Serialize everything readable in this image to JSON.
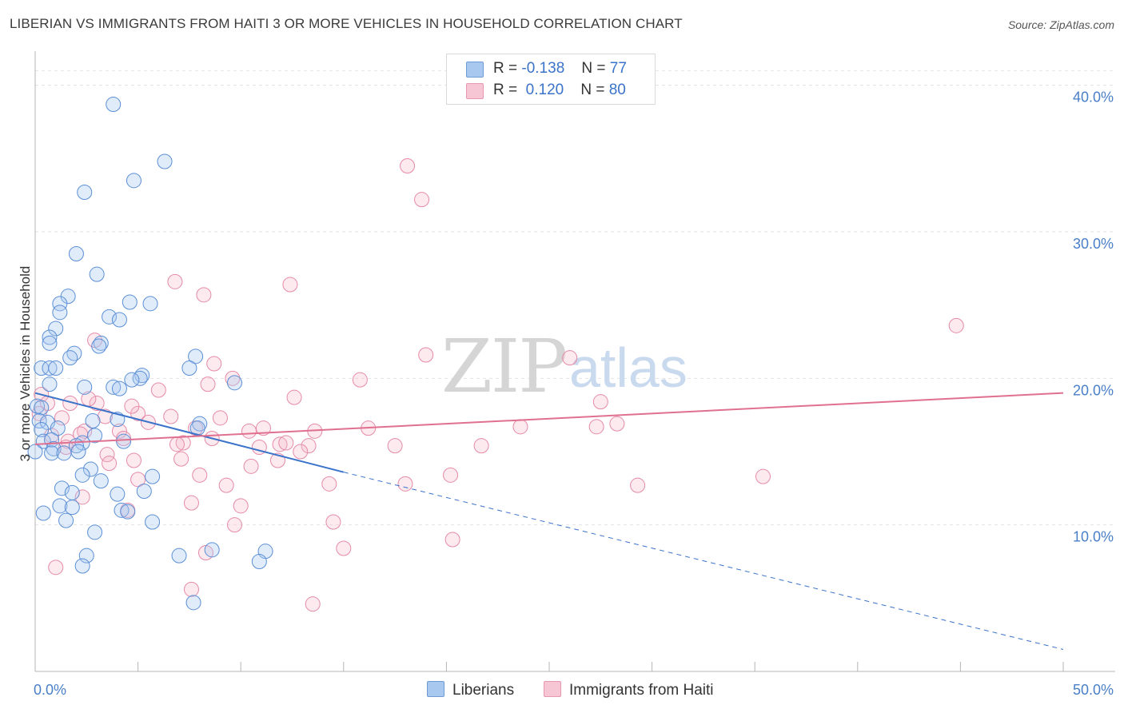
{
  "title": "LIBERIAN VS IMMIGRANTS FROM HAITI 3 OR MORE VEHICLES IN HOUSEHOLD CORRELATION CHART",
  "source": "Source: ZipAtlas.com",
  "watermark": {
    "zip": "ZIP",
    "atlas": "atlas"
  },
  "legend": {
    "series1": {
      "r_label": "R =",
      "r_value": "-0.138",
      "n_label": "N =",
      "n_value": "77"
    },
    "series2": {
      "r_label": "R =",
      "r_value": "0.120",
      "n_label": "N =",
      "n_value": "80"
    }
  },
  "bottom_legend": {
    "series1": "Liberians",
    "series2": "Immigrants from Haiti"
  },
  "chart_data": {
    "type": "scatter",
    "title": "LIBERIAN VS IMMIGRANTS FROM HAITI 3 OR MORE VEHICLES IN HOUSEHOLD CORRELATION CHART",
    "ylabel": "3 or more Vehicles in Household",
    "xlabel": "",
    "xlim": [
      0,
      50
    ],
    "ylim": [
      0,
      42
    ],
    "x_tick_labels": [
      "0.0%",
      "50.0%"
    ],
    "y_ticks": [
      10,
      20,
      30,
      40
    ],
    "y_tick_labels": [
      "10.0%",
      "20.0%",
      "30.0%",
      "40.0%"
    ],
    "grid": true,
    "colors": {
      "liberians": "#a9c8f0",
      "liberians_line": "#3a73c9",
      "haiti": "#f5b8cb",
      "haiti_line": "#e0708f"
    },
    "series": [
      {
        "name": "Liberians",
        "r": -0.138,
        "n": 77,
        "trend": {
          "x0": 0,
          "y0": 19.0,
          "x1": 15,
          "y1": 13.6,
          "dash_to_x": 50,
          "dash_to_y": 1.5
        },
        "points": [
          [
            3.8,
            38.7
          ],
          [
            6.3,
            34.8
          ],
          [
            4.8,
            33.5
          ],
          [
            2.4,
            32.7
          ],
          [
            2.0,
            28.5
          ],
          [
            3.0,
            27.1
          ],
          [
            1.6,
            25.6
          ],
          [
            1.2,
            25.1
          ],
          [
            4.6,
            25.2
          ],
          [
            5.6,
            25.1
          ],
          [
            1.2,
            24.5
          ],
          [
            3.6,
            24.2
          ],
          [
            4.1,
            24.0
          ],
          [
            1.0,
            23.4
          ],
          [
            0.7,
            22.8
          ],
          [
            0.7,
            22.4
          ],
          [
            3.2,
            22.4
          ],
          [
            3.1,
            22.2
          ],
          [
            1.9,
            21.7
          ],
          [
            1.7,
            21.4
          ],
          [
            7.8,
            21.5
          ],
          [
            0.3,
            20.7
          ],
          [
            0.7,
            20.7
          ],
          [
            1.0,
            20.7
          ],
          [
            7.5,
            20.7
          ],
          [
            5.2,
            20.2
          ],
          [
            5.1,
            20.0
          ],
          [
            4.7,
            19.9
          ],
          [
            9.7,
            19.7
          ],
          [
            0.7,
            19.6
          ],
          [
            2.4,
            19.4
          ],
          [
            3.8,
            19.4
          ],
          [
            4.1,
            19.3
          ],
          [
            0.1,
            18.1
          ],
          [
            0.3,
            18.0
          ],
          [
            0.2,
            17.1
          ],
          [
            0.6,
            17.0
          ],
          [
            2.8,
            17.1
          ],
          [
            4.0,
            17.2
          ],
          [
            8.0,
            16.9
          ],
          [
            1.1,
            16.6
          ],
          [
            0.3,
            16.5
          ],
          [
            7.9,
            16.6
          ],
          [
            2.9,
            16.1
          ],
          [
            0.4,
            15.7
          ],
          [
            0.8,
            15.8
          ],
          [
            2.3,
            15.6
          ],
          [
            4.3,
            15.7
          ],
          [
            2.0,
            15.4
          ],
          [
            0.9,
            15.2
          ],
          [
            0.0,
            15.0
          ],
          [
            0.8,
            14.9
          ],
          [
            1.4,
            14.9
          ],
          [
            2.1,
            15.0
          ],
          [
            2.7,
            13.8
          ],
          [
            2.3,
            13.4
          ],
          [
            3.2,
            13.0
          ],
          [
            5.7,
            13.3
          ],
          [
            1.3,
            12.5
          ],
          [
            1.8,
            12.2
          ],
          [
            4.0,
            12.1
          ],
          [
            5.3,
            12.3
          ],
          [
            1.2,
            11.3
          ],
          [
            1.8,
            11.2
          ],
          [
            0.4,
            10.8
          ],
          [
            4.2,
            11.0
          ],
          [
            4.5,
            10.9
          ],
          [
            1.5,
            10.3
          ],
          [
            5.7,
            10.2
          ],
          [
            2.9,
            9.5
          ],
          [
            2.5,
            7.9
          ],
          [
            7.0,
            7.9
          ],
          [
            8.6,
            8.3
          ],
          [
            11.2,
            8.2
          ],
          [
            2.3,
            7.2
          ],
          [
            10.9,
            7.5
          ],
          [
            7.7,
            4.7
          ]
        ]
      },
      {
        "name": "Immigrants from Haiti",
        "r": 0.12,
        "n": 80,
        "trend": {
          "x0": 0,
          "y0": 15.5,
          "x1": 50,
          "y1": 19.0
        },
        "points": [
          [
            18.1,
            34.5
          ],
          [
            18.8,
            32.2
          ],
          [
            6.8,
            26.6
          ],
          [
            12.4,
            26.4
          ],
          [
            8.2,
            25.7
          ],
          [
            44.8,
            23.6
          ],
          [
            2.9,
            22.6
          ],
          [
            19.0,
            21.6
          ],
          [
            26.0,
            21.4
          ],
          [
            8.7,
            21.0
          ],
          [
            15.8,
            19.9
          ],
          [
            9.6,
            20.0
          ],
          [
            8.4,
            19.6
          ],
          [
            6.0,
            19.2
          ],
          [
            0.3,
            18.9
          ],
          [
            0.6,
            18.3
          ],
          [
            1.7,
            18.3
          ],
          [
            3.0,
            18.3
          ],
          [
            2.6,
            18.6
          ],
          [
            12.6,
            18.7
          ],
          [
            27.5,
            18.4
          ],
          [
            0.2,
            17.6
          ],
          [
            1.3,
            17.3
          ],
          [
            3.4,
            17.4
          ],
          [
            5.0,
            17.6
          ],
          [
            6.6,
            17.4
          ],
          [
            9.0,
            17.3
          ],
          [
            2.4,
            16.4
          ],
          [
            4.1,
            16.4
          ],
          [
            5.5,
            17.0
          ],
          [
            7.8,
            16.6
          ],
          [
            11.1,
            16.6
          ],
          [
            13.6,
            16.4
          ],
          [
            10.4,
            16.4
          ],
          [
            16.2,
            16.6
          ],
          [
            23.6,
            16.7
          ],
          [
            27.3,
            16.7
          ],
          [
            28.3,
            16.9
          ],
          [
            0.8,
            16.1
          ],
          [
            1.6,
            15.7
          ],
          [
            2.2,
            16.2
          ],
          [
            4.3,
            15.9
          ],
          [
            7.2,
            15.6
          ],
          [
            6.9,
            15.5
          ],
          [
            8.6,
            15.9
          ],
          [
            10.9,
            15.3
          ],
          [
            11.9,
            15.5
          ],
          [
            12.2,
            15.6
          ],
          [
            13.3,
            15.4
          ],
          [
            17.5,
            15.4
          ],
          [
            21.7,
            15.4
          ],
          [
            1.5,
            15.3
          ],
          [
            12.9,
            15.0
          ],
          [
            3.5,
            14.8
          ],
          [
            4.8,
            14.4
          ],
          [
            3.6,
            14.2
          ],
          [
            7.1,
            14.5
          ],
          [
            10.5,
            14.0
          ],
          [
            11.8,
            14.4
          ],
          [
            8.0,
            13.4
          ],
          [
            20.2,
            13.4
          ],
          [
            35.4,
            13.3
          ],
          [
            5.0,
            13.1
          ],
          [
            14.3,
            12.8
          ],
          [
            9.3,
            12.7
          ],
          [
            18.0,
            12.8
          ],
          [
            29.3,
            12.7
          ],
          [
            7.6,
            11.5
          ],
          [
            10.0,
            11.3
          ],
          [
            4.5,
            11.0
          ],
          [
            2.3,
            11.9
          ],
          [
            9.7,
            10.0
          ],
          [
            14.5,
            10.2
          ],
          [
            8.3,
            8.1
          ],
          [
            15.0,
            8.4
          ],
          [
            20.3,
            9.0
          ],
          [
            1.0,
            7.1
          ],
          [
            7.6,
            5.6
          ],
          [
            13.5,
            4.6
          ],
          [
            4.7,
            18.1
          ]
        ]
      }
    ]
  }
}
